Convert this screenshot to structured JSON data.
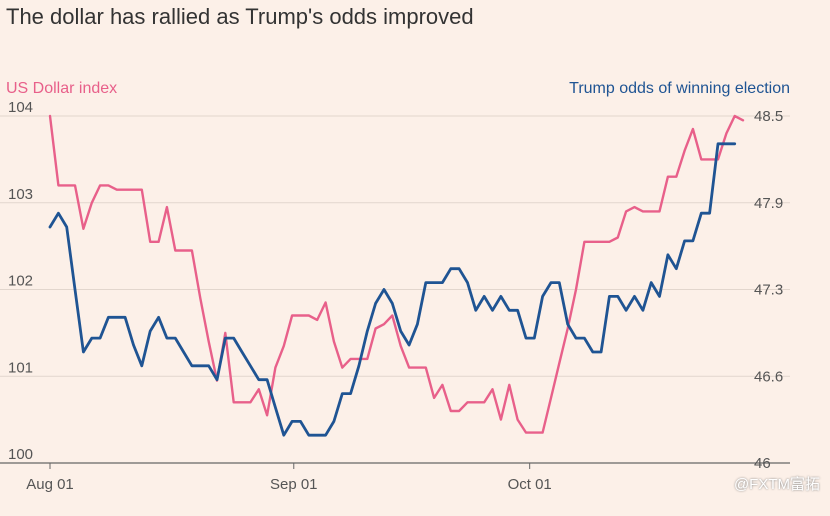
{
  "watermark": "@FXTM富拓",
  "chart_data": {
    "type": "line",
    "title": "The dollar has rallied as Trump's odds improved",
    "left_axis": {
      "label": "US Dollar index",
      "ticks": [
        "100",
        "101",
        "102",
        "103",
        "104"
      ],
      "ylim": [
        100,
        104
      ],
      "color": "#e8608a"
    },
    "right_axis": {
      "label": "Trump odds of winning election",
      "ticks": [
        "46",
        "46.6",
        "47.3",
        "47.9",
        "48.5"
      ],
      "ylim": [
        46,
        48.5
      ],
      "color": "#1f5493"
    },
    "x_ticks": [
      {
        "label": "Aug 01",
        "day": 0
      },
      {
        "label": "Sep 01",
        "day": 31
      },
      {
        "label": "Oct 01",
        "day": 61
      }
    ],
    "x_range_days": [
      0,
      88
    ],
    "grid": true,
    "series": [
      {
        "name": "US Dollar index",
        "axis": "left",
        "color": "#e8608a",
        "values": [
          104.0,
          103.2,
          103.2,
          103.2,
          102.7,
          103.0,
          103.2,
          103.2,
          103.15,
          103.15,
          103.15,
          103.15,
          102.55,
          102.55,
          102.95,
          102.45,
          102.45,
          102.45,
          101.9,
          101.4,
          100.95,
          101.5,
          100.7,
          100.7,
          100.7,
          100.85,
          100.55,
          101.1,
          101.35,
          101.7,
          101.7,
          101.7,
          101.65,
          101.85,
          101.4,
          101.1,
          101.2,
          101.2,
          101.2,
          101.55,
          101.6,
          101.7,
          101.35,
          101.1,
          101.1,
          101.1,
          100.75,
          100.9,
          100.6,
          100.6,
          100.7,
          100.7,
          100.7,
          100.85,
          100.5,
          100.9,
          100.5,
          100.35,
          100.35,
          100.35,
          100.75,
          101.15,
          101.55,
          102.0,
          102.55,
          102.55,
          102.55,
          102.55,
          102.6,
          102.9,
          102.95,
          102.9,
          102.9,
          102.9,
          103.3,
          103.3,
          103.6,
          103.85,
          103.5,
          103.5,
          103.5,
          103.8,
          104.0,
          103.95
        ]
      },
      {
        "name": "Trump odds of winning election",
        "axis": "right",
        "color": "#1f5493",
        "values": [
          47.7,
          47.8,
          47.7,
          47.25,
          46.8,
          46.9,
          46.9,
          47.05,
          47.05,
          47.05,
          46.85,
          46.7,
          46.95,
          47.05,
          46.9,
          46.9,
          46.8,
          46.7,
          46.7,
          46.7,
          46.6,
          46.9,
          46.9,
          46.8,
          46.7,
          46.6,
          46.6,
          46.4,
          46.2,
          46.3,
          46.3,
          46.2,
          46.2,
          46.2,
          46.3,
          46.5,
          46.5,
          46.7,
          46.95,
          47.15,
          47.25,
          47.15,
          46.95,
          46.85,
          47.0,
          47.3,
          47.3,
          47.3,
          47.4,
          47.4,
          47.3,
          47.1,
          47.2,
          47.1,
          47.2,
          47.1,
          47.1,
          46.9,
          46.9,
          47.2,
          47.3,
          47.3,
          47.0,
          46.9,
          46.9,
          46.8,
          46.8,
          47.2,
          47.2,
          47.1,
          47.2,
          47.1,
          47.3,
          47.2,
          47.5,
          47.4,
          47.6,
          47.6,
          47.8,
          47.8,
          48.3,
          48.3,
          48.3
        ]
      }
    ]
  }
}
